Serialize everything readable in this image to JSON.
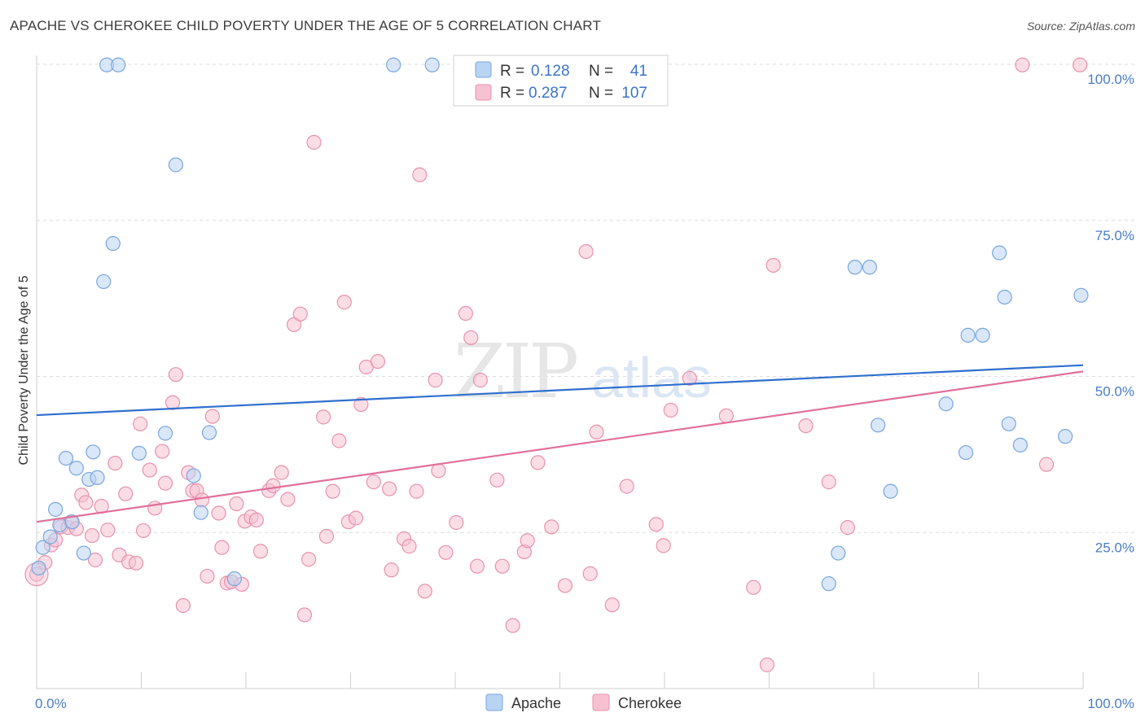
{
  "title": "APACHE VS CHEROKEE CHILD POVERTY UNDER THE AGE OF 5 CORRELATION CHART",
  "source": "Source: ZipAtlas.com",
  "watermark": {
    "zip": "ZIP",
    "atlas": "atlas"
  },
  "colors": {
    "apache_fill": "#b9d3f3",
    "apache_stroke": "#7aa6de",
    "apache_line": "#2f6fce",
    "cherokee_fill": "#f7c1d2",
    "cherokee_stroke": "#e892ae",
    "cherokee_line": "#e0709a",
    "grid": "#dcdcdc",
    "axis_text": "#4a7cc4"
  },
  "legend": {
    "rows": [
      {
        "r_label": "R =",
        "r_value": "0.128",
        "n_label": "N =",
        "n_value": "41"
      },
      {
        "r_label": "R =",
        "r_value": "0.287",
        "n_label": "N =",
        "n_value": "107"
      }
    ]
  },
  "chart_data": {
    "type": "scatter",
    "ylabel": "Child Poverty Under the Age of 5",
    "xlim": [
      0,
      100
    ],
    "ylim": [
      0,
      100
    ],
    "y_ticks": [
      "25.0%",
      "50.0%",
      "75.0%",
      "100.0%"
    ],
    "y_tick_values": [
      25,
      50,
      75,
      100
    ],
    "x_ticks": [
      "0.0%",
      "100.0%"
    ],
    "grid": "horizontal dashed",
    "legend_position": "top-center",
    "series": [
      {
        "name": "Apache",
        "trend": [
          [
            0,
            43.8
          ],
          [
            100,
            51.8
          ]
        ],
        "points": [
          [
            0.2,
            19.3
          ],
          [
            0.6,
            22.6
          ],
          [
            1.3,
            24.3
          ],
          [
            1.8,
            28.7
          ],
          [
            2.2,
            26.2
          ],
          [
            2.8,
            36.9
          ],
          [
            3.4,
            26.7
          ],
          [
            3.8,
            35.3
          ],
          [
            4.5,
            21.7
          ],
          [
            5.0,
            33.5
          ],
          [
            5.4,
            37.9
          ],
          [
            5.8,
            33.8
          ],
          [
            6.4,
            65.2
          ],
          [
            6.7,
            99.9
          ],
          [
            7.3,
            71.3
          ],
          [
            7.8,
            99.9
          ],
          [
            9.8,
            37.7
          ],
          [
            12.3,
            40.9
          ],
          [
            13.3,
            83.9
          ],
          [
            15.0,
            34.1
          ],
          [
            15.7,
            28.2
          ],
          [
            16.5,
            41.0
          ],
          [
            18.9,
            17.6
          ],
          [
            34.1,
            99.9
          ],
          [
            37.8,
            99.9
          ],
          [
            75.7,
            16.8
          ],
          [
            76.6,
            21.7
          ],
          [
            78.2,
            67.5
          ],
          [
            79.6,
            67.5
          ],
          [
            80.4,
            42.2
          ],
          [
            81.6,
            31.6
          ],
          [
            86.9,
            45.6
          ],
          [
            88.8,
            37.8
          ],
          [
            89.0,
            56.6
          ],
          [
            90.4,
            56.6
          ],
          [
            92.0,
            69.8
          ],
          [
            92.5,
            62.7
          ],
          [
            92.9,
            42.4
          ],
          [
            94.0,
            39.0
          ],
          [
            98.3,
            40.4
          ],
          [
            99.8,
            63.0
          ]
        ]
      },
      {
        "name": "Cherokee",
        "trend": [
          [
            0,
            26.7
          ],
          [
            100,
            50.8
          ]
        ],
        "points": [
          [
            0.0,
            18.3
          ],
          [
            0.8,
            20.2
          ],
          [
            1.4,
            23.0
          ],
          [
            1.8,
            23.8
          ],
          [
            2.3,
            25.9
          ],
          [
            3.0,
            25.8
          ],
          [
            3.3,
            26.7
          ],
          [
            3.8,
            25.6
          ],
          [
            4.3,
            31.0
          ],
          [
            4.7,
            29.8
          ],
          [
            5.3,
            24.5
          ],
          [
            5.6,
            20.6
          ],
          [
            6.2,
            29.2
          ],
          [
            6.8,
            25.4
          ],
          [
            7.5,
            36.1
          ],
          [
            7.9,
            21.4
          ],
          [
            8.5,
            31.2
          ],
          [
            8.8,
            20.3
          ],
          [
            9.5,
            20.1
          ],
          [
            9.9,
            42.4
          ],
          [
            10.2,
            25.3
          ],
          [
            10.8,
            35.0
          ],
          [
            11.3,
            28.9
          ],
          [
            12.0,
            38.0
          ],
          [
            12.3,
            32.9
          ],
          [
            13.0,
            45.8
          ],
          [
            13.3,
            50.3
          ],
          [
            14.0,
            13.3
          ],
          [
            14.5,
            34.6
          ],
          [
            14.9,
            31.7
          ],
          [
            15.3,
            31.7
          ],
          [
            15.8,
            30.2
          ],
          [
            16.3,
            18.0
          ],
          [
            16.8,
            43.6
          ],
          [
            17.4,
            28.1
          ],
          [
            17.7,
            22.6
          ],
          [
            18.2,
            16.9
          ],
          [
            18.6,
            17.1
          ],
          [
            19.1,
            29.6
          ],
          [
            19.6,
            16.7
          ],
          [
            19.9,
            26.8
          ],
          [
            20.5,
            27.5
          ],
          [
            21.0,
            27.0
          ],
          [
            21.4,
            22.0
          ],
          [
            22.2,
            31.7
          ],
          [
            22.6,
            32.5
          ],
          [
            23.4,
            34.6
          ],
          [
            24.0,
            30.3
          ],
          [
            24.6,
            58.3
          ],
          [
            25.2,
            60.0
          ],
          [
            25.6,
            11.8
          ],
          [
            26.0,
            20.7
          ],
          [
            26.5,
            87.5
          ],
          [
            27.4,
            43.5
          ],
          [
            27.7,
            24.4
          ],
          [
            28.3,
            31.6
          ],
          [
            28.9,
            39.7
          ],
          [
            29.4,
            61.9
          ],
          [
            29.8,
            26.7
          ],
          [
            30.5,
            27.3
          ],
          [
            31.0,
            45.5
          ],
          [
            31.5,
            51.5
          ],
          [
            32.2,
            33.1
          ],
          [
            32.6,
            52.4
          ],
          [
            33.7,
            32.0
          ],
          [
            33.9,
            19.0
          ],
          [
            35.1,
            24.0
          ],
          [
            35.6,
            22.8
          ],
          [
            36.3,
            31.6
          ],
          [
            36.6,
            82.3
          ],
          [
            37.1,
            15.6
          ],
          [
            38.1,
            49.4
          ],
          [
            38.4,
            34.9
          ],
          [
            39.1,
            21.8
          ],
          [
            40.1,
            26.6
          ],
          [
            41.0,
            60.1
          ],
          [
            41.5,
            56.2
          ],
          [
            42.1,
            19.6
          ],
          [
            42.4,
            49.4
          ],
          [
            44.0,
            33.4
          ],
          [
            44.5,
            19.6
          ],
          [
            45.5,
            10.1
          ],
          [
            46.6,
            21.9
          ],
          [
            46.9,
            23.7
          ],
          [
            47.9,
            36.2
          ],
          [
            49.2,
            25.9
          ],
          [
            50.5,
            16.5
          ],
          [
            52.5,
            70.0
          ],
          [
            52.9,
            18.4
          ],
          [
            53.5,
            41.1
          ],
          [
            55.0,
            13.4
          ],
          [
            56.4,
            32.4
          ],
          [
            57.4,
            99.9
          ],
          [
            59.2,
            26.3
          ],
          [
            59.9,
            22.9
          ],
          [
            60.6,
            44.6
          ],
          [
            62.4,
            49.7
          ],
          [
            65.9,
            43.7
          ],
          [
            68.5,
            16.2
          ],
          [
            70.4,
            67.8
          ],
          [
            69.8,
            3.8
          ],
          [
            73.5,
            42.1
          ],
          [
            75.7,
            33.1
          ],
          [
            77.5,
            25.8
          ],
          [
            94.2,
            99.9
          ],
          [
            96.5,
            35.9
          ],
          [
            99.7,
            99.9
          ]
        ]
      }
    ]
  }
}
